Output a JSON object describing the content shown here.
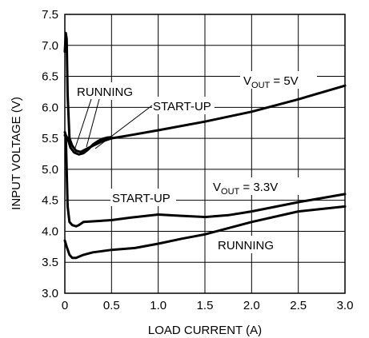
{
  "chart_data": {
    "type": "line",
    "title": "",
    "xlabel": "LOAD CURRENT (A)",
    "ylabel": "INPUT VOLTAGE (V)",
    "xlim": [
      0,
      3.0
    ],
    "ylim": [
      3.0,
      7.5
    ],
    "xticks": [
      "0",
      "0.5",
      "1.0",
      "1.5",
      "2.0",
      "2.5",
      "3.0"
    ],
    "yticks": [
      "3.0",
      "3.5",
      "4.0",
      "4.5",
      "5.0",
      "5.5",
      "6.0",
      "6.5",
      "7.0",
      "7.5"
    ],
    "grid": true,
    "series": [
      {
        "x": [
          0.0,
          0.01,
          0.02,
          0.03,
          0.05,
          0.08,
          0.12,
          0.17,
          0.22,
          0.3,
          0.4,
          0.5,
          0.7,
          1.0,
          1.5,
          2.0,
          2.5,
          3.0
        ],
        "y": [
          6.9,
          7.2,
          7.1,
          6.2,
          5.5,
          5.38,
          5.3,
          5.28,
          5.32,
          5.38,
          5.45,
          5.5,
          5.55,
          5.63,
          5.77,
          5.93,
          6.13,
          6.35
        ]
      },
      {
        "x": [
          0.0,
          0.01,
          0.03,
          0.06,
          0.1,
          0.15,
          0.2,
          0.25,
          0.3,
          0.35,
          0.4,
          0.45,
          0.5
        ],
        "y": [
          5.55,
          5.55,
          5.5,
          5.35,
          5.27,
          5.24,
          5.26,
          5.32,
          5.4,
          5.45,
          5.49,
          5.51,
          5.52
        ]
      },
      {
        "x": [
          0.0,
          0.01,
          0.02,
          0.03,
          0.05,
          0.08,
          0.12,
          0.15,
          0.2,
          0.3,
          0.5,
          0.7,
          1.0,
          1.25,
          1.5,
          1.75,
          2.0,
          2.5,
          3.0
        ],
        "y": [
          5.6,
          5.55,
          5.0,
          4.4,
          4.15,
          4.1,
          4.08,
          4.1,
          4.15,
          4.16,
          4.18,
          4.22,
          4.27,
          4.25,
          4.23,
          4.26,
          4.32,
          4.47,
          4.6
        ]
      },
      {
        "x": [
          0.0,
          0.02,
          0.05,
          0.08,
          0.12,
          0.2,
          0.3,
          0.5,
          0.75,
          1.0,
          1.25,
          1.5,
          2.0,
          2.5,
          3.0
        ],
        "y": [
          3.85,
          3.75,
          3.62,
          3.57,
          3.57,
          3.62,
          3.66,
          3.7,
          3.73,
          3.8,
          3.88,
          3.95,
          4.15,
          4.32,
          4.4
        ]
      }
    ],
    "annotations": {
      "running_top": "RUNNING",
      "startup_top": "START-UP",
      "vout5_v": "V",
      "vout5_sub": "OUT",
      "vout5_rest": " = 5V",
      "startup_bottom": "START-UP",
      "vout33_v": "V",
      "vout33_sub": "OUT",
      "vout33_rest": " = 3.3V",
      "running_bottom": "RUNNING"
    }
  }
}
